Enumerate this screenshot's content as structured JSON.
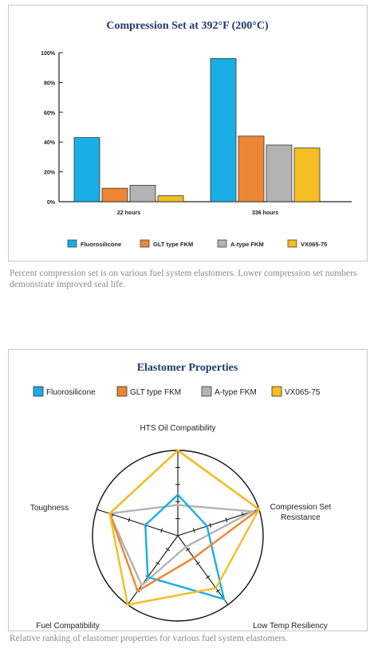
{
  "colors": {
    "fluorosilicone": "#1aaee6",
    "glt": "#ed8633",
    "atype": "#b3b3b3",
    "vx": "#f4bd22",
    "title": "#1f3a6e",
    "caption": "#8a8a8a"
  },
  "chart_data": [
    {
      "type": "bar",
      "title": "Compression Set at 392°F (200°C)",
      "categories": [
        "22 hours",
        "336 hours"
      ],
      "series": [
        {
          "name": "Fluorosilicone",
          "values": [
            43,
            96
          ]
        },
        {
          "name": "GLT type FKM",
          "values": [
            9,
            44
          ]
        },
        {
          "name": "A-type FKM",
          "values": [
            11,
            38
          ]
        },
        {
          "name": "VX065-75",
          "values": [
            4,
            36
          ]
        }
      ],
      "ylim": [
        0,
        100
      ],
      "yticks": [
        "0%",
        "20%",
        "40%",
        "60%",
        "80%",
        "100%"
      ],
      "ytick_values": [
        0,
        20,
        40,
        60,
        80,
        100
      ],
      "legend": "bottom",
      "grid": false
    },
    {
      "type": "radar",
      "title": "Elastomer Properties",
      "axes": [
        "HTS Oil Compatibility",
        "Compression Set\nResistance",
        "Low Temp Resiliency",
        "Fuel Compatibility",
        "Toughness"
      ],
      "scale_max": 5,
      "series": [
        {
          "name": "Fluorosilicone",
          "values": [
            2.4,
            1.8,
            4.6,
            3.0,
            2.0
          ]
        },
        {
          "name": "GLT type FKM",
          "values": [
            5,
            5,
            1.6,
            4.0,
            4.2
          ]
        },
        {
          "name": "A-type FKM",
          "values": [
            1.8,
            4.6,
            0.8,
            3.6,
            4.2
          ]
        },
        {
          "name": "VX065-75",
          "values": [
            5,
            5,
            3.8,
            5,
            4.2
          ]
        }
      ],
      "legend": "top"
    }
  ],
  "captions": {
    "bar": "Percent compression set is on various fuel system elastomers. Lower compression set numbers demonstrate improved seal life.",
    "radar": "Relative ranking of elastomer properties for various fuel system elastomers."
  }
}
